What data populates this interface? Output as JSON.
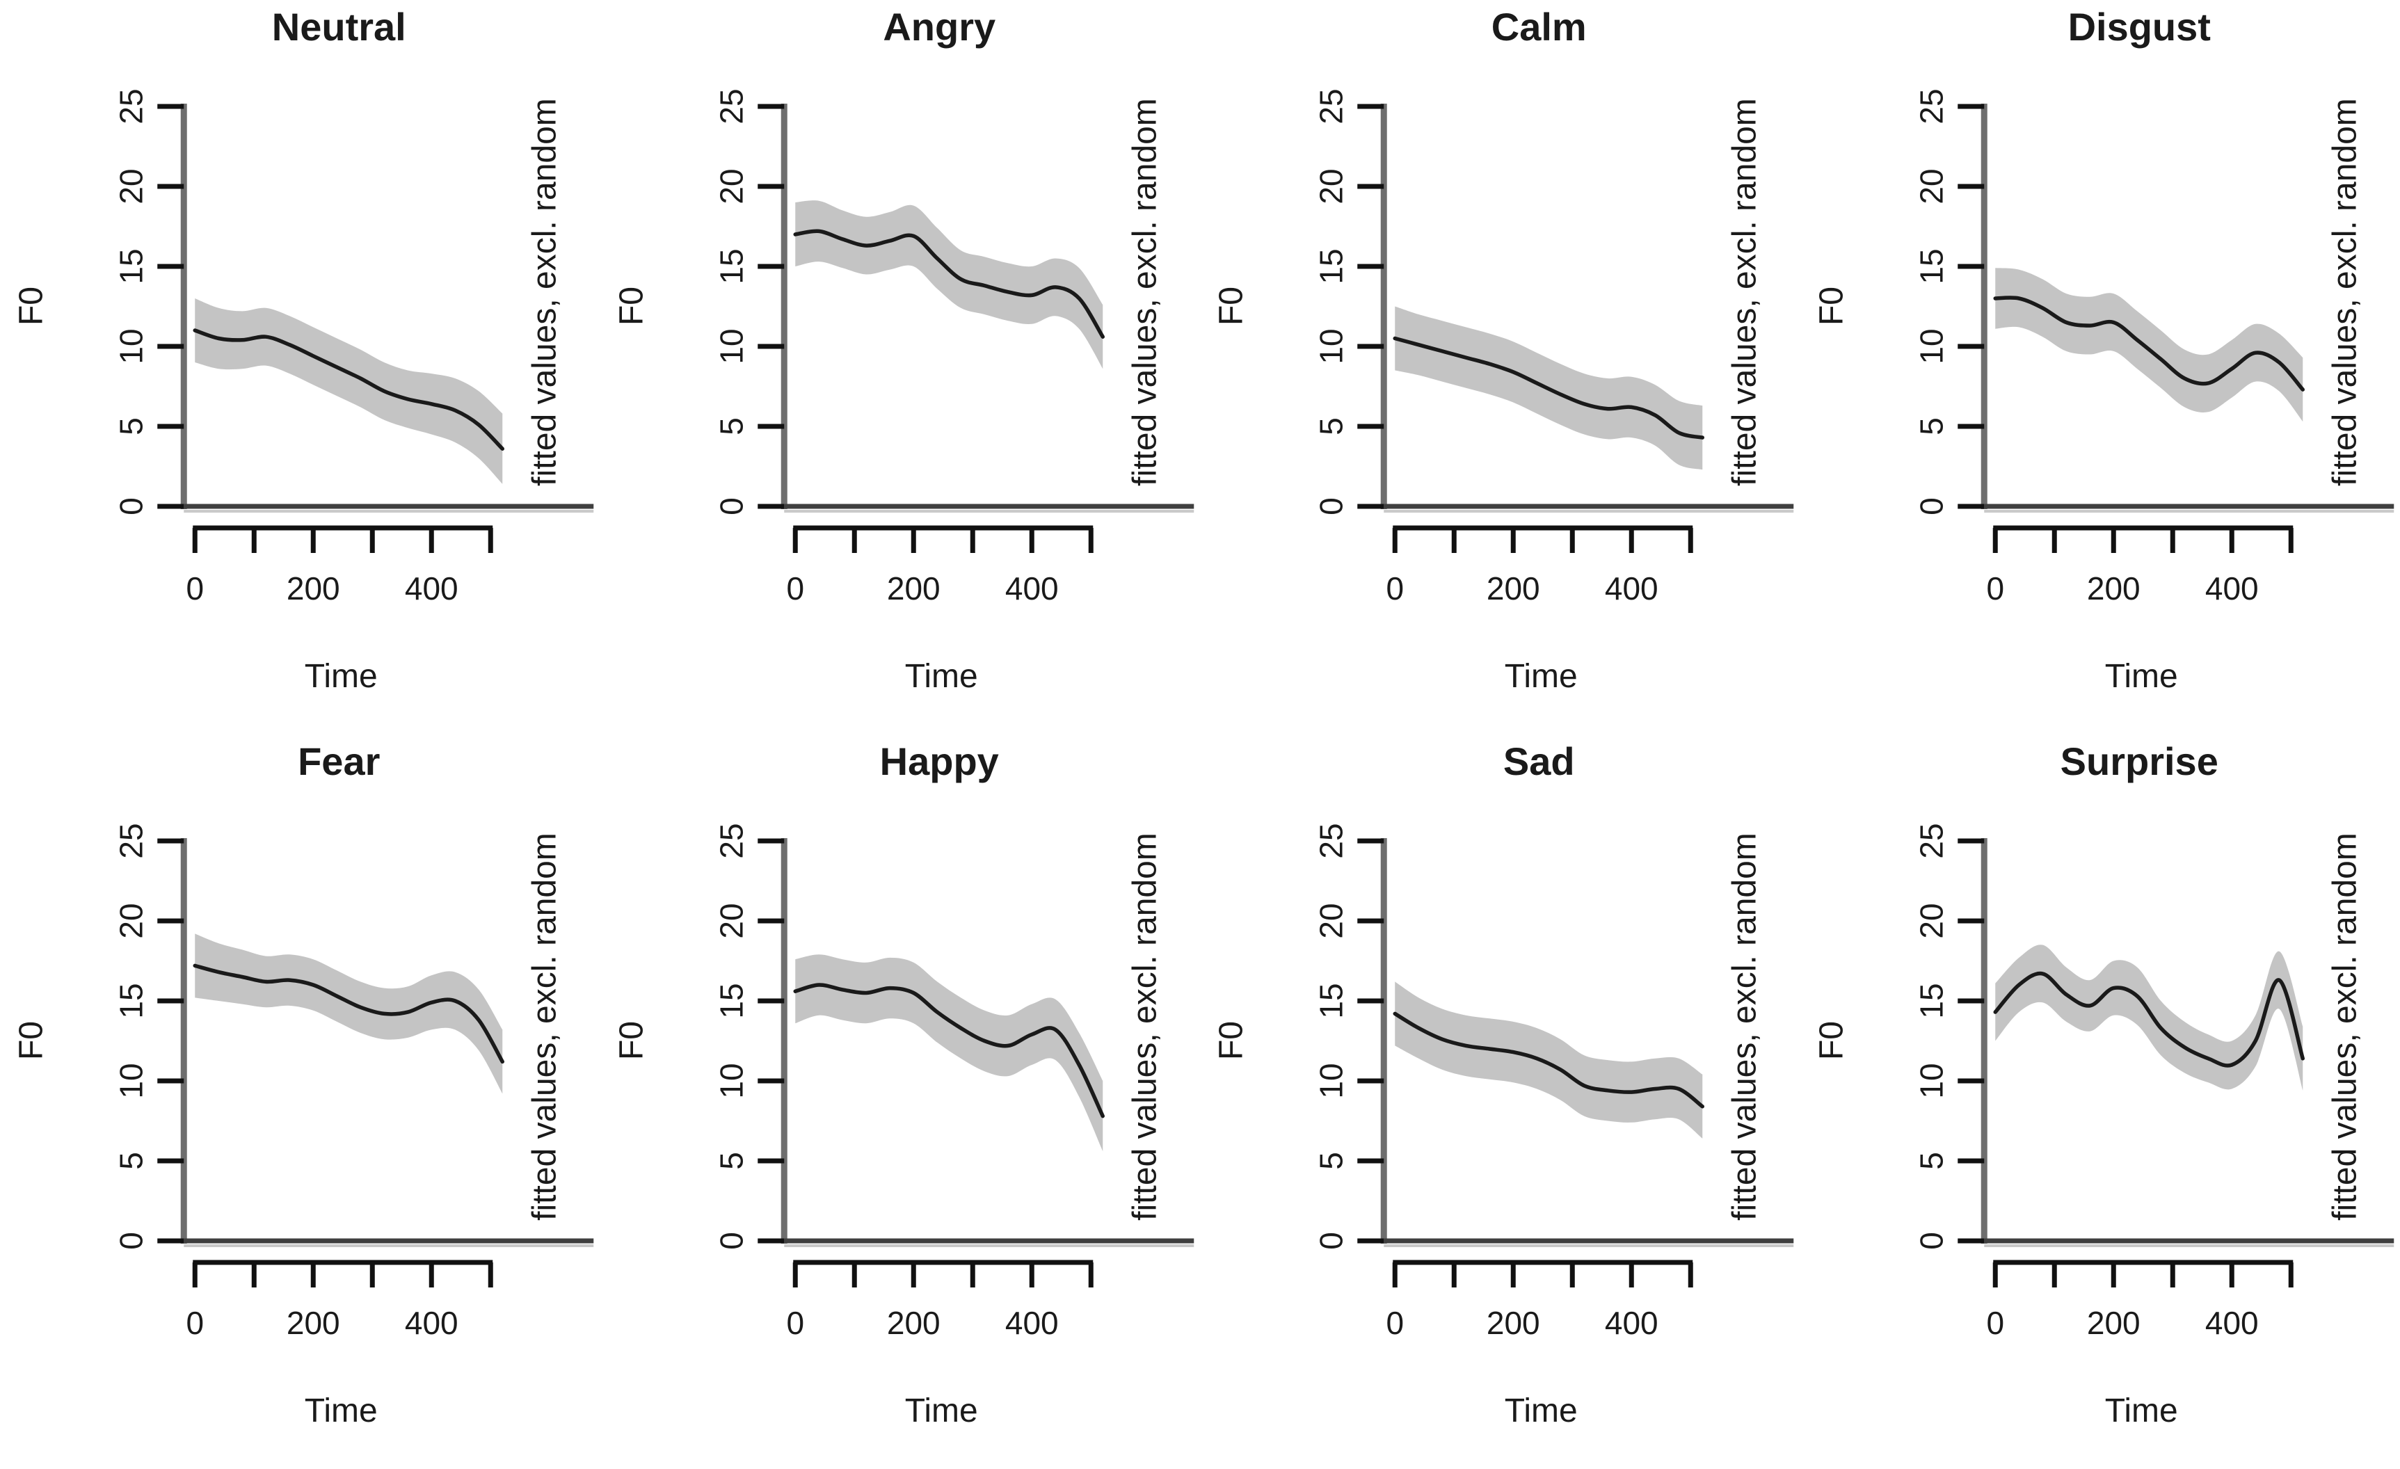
{
  "figure": {
    "description": "Grid of 8 GAM smooth plots of F0 over Time, one per emotion, each with a fitted line and gray confidence band",
    "ylab": "F0",
    "xlab": "Time",
    "right_axis_label": "fitted values, excl. random",
    "y_tick_labels": [
      "0",
      "5",
      "10",
      "15",
      "20",
      "25"
    ],
    "x_axis_tick_values": [
      0,
      100,
      200,
      300,
      400,
      500
    ],
    "x_labels": [
      {
        "t": 0,
        "text": "0"
      },
      {
        "t": 200,
        "text": "200"
      },
      {
        "t": 400,
        "text": "400"
      }
    ],
    "ylim": [
      0,
      25
    ],
    "xlim": [
      0,
      520
    ],
    "colors": {
      "background": "#ffffff",
      "band": "#c4c4c4",
      "fitted_line": "#1a1a1a",
      "y_axis_line": "#6e6e6e",
      "zero_line": "#3f3f3f",
      "zero_line_shadow": "#c9c9c9",
      "ruler": "#111111",
      "tick_label": "#1a1a1a",
      "title": "#000000",
      "right_label": "#8a8a8a"
    }
  },
  "chart_data": [
    {
      "type": "line",
      "title": "Neutral",
      "xlabel": "Time",
      "ylabel": "F0",
      "right_label": "fitted values, excl. random",
      "ylim": [
        0,
        25
      ],
      "x": [
        0,
        40,
        80,
        120,
        160,
        200,
        240,
        280,
        320,
        360,
        400,
        440,
        480,
        520
      ],
      "fit": [
        11.0,
        10.5,
        10.4,
        10.6,
        10.1,
        9.4,
        8.7,
        8.0,
        7.2,
        6.7,
        6.4,
        6.0,
        5.1,
        3.6
      ],
      "ci": [
        2.0,
        1.9,
        1.8,
        1.8,
        1.8,
        1.8,
        1.8,
        1.8,
        1.8,
        1.8,
        1.9,
        2.0,
        2.1,
        2.2
      ]
    },
    {
      "type": "line",
      "title": "Angry",
      "xlabel": "Time",
      "ylabel": "F0",
      "right_label": "fitted values, excl. random",
      "ylim": [
        0,
        25
      ],
      "x": [
        0,
        40,
        80,
        120,
        160,
        200,
        240,
        280,
        320,
        360,
        400,
        440,
        480,
        520
      ],
      "fit": [
        17.0,
        17.2,
        16.7,
        16.3,
        16.6,
        16.9,
        15.5,
        14.2,
        13.8,
        13.4,
        13.2,
        13.7,
        13.0,
        10.6
      ],
      "ci": [
        2.0,
        1.9,
        1.8,
        1.8,
        1.8,
        1.9,
        1.9,
        1.8,
        1.8,
        1.8,
        1.8,
        1.8,
        1.9,
        2.0
      ]
    },
    {
      "type": "line",
      "title": "Calm",
      "xlabel": "Time",
      "ylabel": "F0",
      "right_label": "fitted values, excl. random",
      "ylim": [
        0,
        25
      ],
      "x": [
        0,
        40,
        80,
        120,
        160,
        200,
        240,
        280,
        320,
        360,
        400,
        440,
        480,
        520
      ],
      "fit": [
        10.5,
        10.1,
        9.7,
        9.3,
        8.9,
        8.4,
        7.7,
        7.0,
        6.4,
        6.1,
        6.2,
        5.7,
        4.6,
        4.3
      ],
      "ci": [
        2.0,
        1.9,
        1.9,
        1.9,
        1.9,
        1.9,
        1.9,
        1.9,
        1.9,
        1.9,
        1.9,
        1.9,
        2.0,
        2.0
      ]
    },
    {
      "type": "line",
      "title": "Disgust",
      "xlabel": "Time",
      "ylabel": "F0",
      "right_label": "fitted values, excl. random",
      "ylim": [
        0,
        25
      ],
      "x": [
        0,
        40,
        80,
        120,
        160,
        200,
        240,
        280,
        320,
        360,
        400,
        440,
        480,
        520
      ],
      "fit": [
        13.0,
        13.0,
        12.4,
        11.5,
        11.3,
        11.5,
        10.4,
        9.2,
        8.0,
        7.7,
        8.6,
        9.6,
        9.0,
        7.3
      ],
      "ci": [
        1.9,
        1.8,
        1.8,
        1.8,
        1.8,
        1.8,
        1.8,
        1.8,
        1.8,
        1.8,
        1.8,
        1.8,
        1.8,
        2.0
      ]
    },
    {
      "type": "line",
      "title": "Fear",
      "xlabel": "Time",
      "ylabel": "F0",
      "right_label": "fitted values, excl. random",
      "ylim": [
        0,
        25
      ],
      "x": [
        0,
        40,
        80,
        120,
        160,
        200,
        240,
        280,
        320,
        360,
        400,
        440,
        480,
        520
      ],
      "fit": [
        17.2,
        16.8,
        16.5,
        16.2,
        16.3,
        16.0,
        15.3,
        14.6,
        14.2,
        14.3,
        14.9,
        15.0,
        13.8,
        11.2
      ],
      "ci": [
        2.0,
        1.8,
        1.7,
        1.6,
        1.6,
        1.6,
        1.6,
        1.6,
        1.6,
        1.6,
        1.7,
        1.8,
        1.9,
        2.0
      ]
    },
    {
      "type": "line",
      "title": "Happy",
      "xlabel": "Time",
      "ylabel": "F0",
      "right_label": "fitted values, excl. random",
      "ylim": [
        0,
        25
      ],
      "x": [
        0,
        40,
        80,
        120,
        160,
        200,
        240,
        280,
        320,
        360,
        400,
        440,
        480,
        520
      ],
      "fit": [
        15.6,
        16.0,
        15.7,
        15.5,
        15.8,
        15.5,
        14.3,
        13.3,
        12.5,
        12.2,
        12.9,
        13.2,
        11.0,
        7.8
      ],
      "ci": [
        2.0,
        1.9,
        1.9,
        1.9,
        1.9,
        1.9,
        1.9,
        1.9,
        1.9,
        1.9,
        1.9,
        1.9,
        2.0,
        2.2
      ]
    },
    {
      "type": "line",
      "title": "Sad",
      "xlabel": "Time",
      "ylabel": "F0",
      "right_label": "fitted values, excl. random",
      "ylim": [
        0,
        25
      ],
      "x": [
        0,
        40,
        80,
        120,
        160,
        200,
        240,
        280,
        320,
        360,
        400,
        440,
        480,
        520
      ],
      "fit": [
        14.2,
        13.3,
        12.6,
        12.2,
        12.0,
        11.8,
        11.4,
        10.7,
        9.7,
        9.4,
        9.3,
        9.5,
        9.5,
        8.4
      ],
      "ci": [
        2.0,
        1.9,
        1.9,
        1.9,
        1.9,
        1.9,
        1.9,
        1.9,
        1.9,
        1.9,
        1.9,
        1.9,
        1.9,
        2.0
      ]
    },
    {
      "type": "line",
      "title": "Surprise",
      "xlabel": "Time",
      "ylabel": "F0",
      "right_label": "fitted values, excl. random",
      "ylim": [
        0,
        25
      ],
      "x": [
        0,
        40,
        80,
        120,
        160,
        200,
        240,
        280,
        320,
        360,
        400,
        440,
        480,
        520
      ],
      "fit": [
        14.3,
        16.0,
        16.7,
        15.4,
        14.7,
        15.8,
        15.3,
        13.3,
        12.1,
        11.4,
        11.0,
        12.5,
        16.3,
        11.4
      ],
      "ci": [
        1.8,
        1.7,
        1.8,
        1.7,
        1.6,
        1.7,
        1.8,
        1.7,
        1.6,
        1.5,
        1.5,
        1.6,
        1.8,
        2.0
      ]
    }
  ]
}
